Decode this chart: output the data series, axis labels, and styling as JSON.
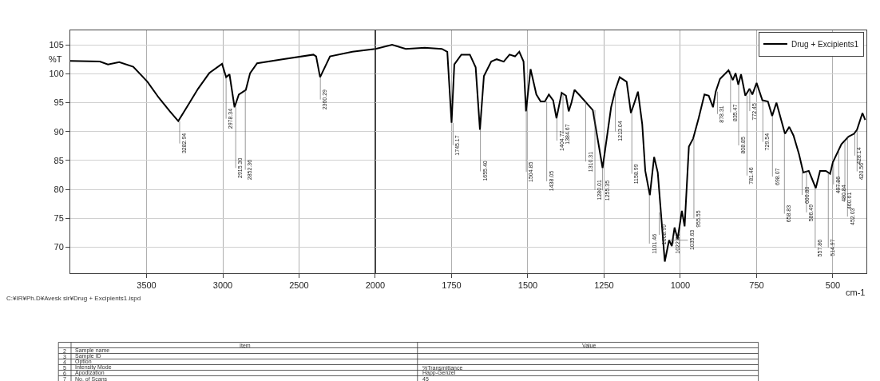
{
  "chart_data": [
    {
      "type": "line",
      "ylabel": "%T",
      "x": [
        4000,
        3806,
        3753,
        3679,
        3587,
        3494,
        3421,
        3347,
        3292,
        3236,
        3162,
        3089,
        3005,
        2978,
        2956,
        2923,
        2895,
        2849,
        2821,
        2775,
        2609,
        2406,
        2388,
        2362,
        2297,
        2150,
        2000
      ],
      "series": [
        {
          "color": "#000000",
          "values": [
            102.2,
            102.1,
            101.6,
            102,
            101.2,
            98.6,
            95.9,
            93.5,
            91.8,
            94.2,
            97.4,
            100.1,
            101.7,
            99.4,
            99.9,
            94.2,
            96.4,
            97.2,
            100.1,
            101.8,
            102.5,
            103.3,
            103,
            99.4,
            103,
            103.8,
            104.3
          ]
        }
      ],
      "xlim": [
        4000,
        2000
      ],
      "xticks": [
        3500,
        3000,
        2500,
        2000
      ],
      "ylim": [
        65.5,
        107.5
      ],
      "yticks": [
        70,
        75,
        80,
        85,
        90,
        95,
        100,
        105
      ],
      "grid": true,
      "annotations": [
        {
          "text": "3282.94",
          "x": 3282.94,
          "y": 91.8
        },
        {
          "text": "2978.34",
          "x": 2978.34,
          "y": 99.4
        },
        {
          "text": "2915.30",
          "x": 2915.3,
          "y": 94.2
        },
        {
          "text": "2852.36",
          "x": 2852.36,
          "y": 97.2
        },
        {
          "text": "2360.29",
          "x": 2360.29,
          "y": 99.4
        },
        "C:¥IR¥Ph.D¥Avesk sir¥Drug + Excipients1.ispd",
        "Item",
        "Value",
        "2",
        "Sample name",
        "3",
        "Sample ID",
        "4",
        "Option",
        "5",
        "Intensity Mode",
        "%Transmittance",
        "6",
        "Apodization",
        "Happ-Genzel",
        "7",
        "No. of Scans",
        "45"
      ]
    },
    {
      "type": "line",
      "xlabel": "cm-1",
      "x": [
        2000,
        1945,
        1900,
        1838,
        1782,
        1764,
        1750,
        1741,
        1718,
        1690,
        1671,
        1657,
        1644,
        1620,
        1602,
        1579,
        1560,
        1542,
        1528,
        1514,
        1506,
        1491,
        1472,
        1458,
        1444,
        1431,
        1417,
        1406,
        1389,
        1375,
        1366,
        1357,
        1347,
        1329,
        1287,
        1255,
        1227,
        1213,
        1199,
        1176,
        1162,
        1148,
        1139,
        1125,
        1115,
        1100,
        1086,
        1074,
        1051,
        1037,
        1028,
        1019,
        1009,
        995,
        986,
        972,
        958,
        940,
        921,
        907,
        893,
        884,
        870,
        842,
        828,
        819,
        810,
        801,
        787,
        773,
        764,
        750,
        731,
        713,
        699,
        685,
        657,
        643,
        629,
        611,
        597,
        579,
        556,
        542,
        523,
        509,
        500,
        472,
        449,
        431,
        421,
        403,
        394
      ],
      "series": [
        {
          "name": "Drug + Excipients1",
          "color": "#000000",
          "values": [
            104.3,
            105,
            104.3,
            104.5,
            104.3,
            103.8,
            91.5,
            101.6,
            103.3,
            103.3,
            101.1,
            90.3,
            99.6,
            102.1,
            102.5,
            102.1,
            103.3,
            103,
            103.8,
            102.1,
            93.5,
            100.8,
            96.4,
            95.2,
            95.2,
            96.4,
            95.4,
            92.3,
            96.7,
            96.2,
            93.5,
            95,
            97.2,
            96.2,
            93.7,
            83.7,
            94.2,
            97.2,
            99.4,
            98.6,
            93.2,
            95.4,
            96.9,
            91.3,
            83.2,
            79,
            85.6,
            82.9,
            67.5,
            71.2,
            70.2,
            73.4,
            71.4,
            76.3,
            73.6,
            87.4,
            88.8,
            92.3,
            96.4,
            96.2,
            94.2,
            96.9,
            99.1,
            100.6,
            98.9,
            100.1,
            98.1,
            99.9,
            96.2,
            97.4,
            96.4,
            98.4,
            95.4,
            95.2,
            92.7,
            95,
            89.6,
            90.8,
            89.3,
            86.1,
            82.9,
            83.2,
            80.2,
            83.2,
            83.2,
            82.7,
            84.7,
            87.8,
            89.1,
            89.6,
            90.3,
            93.2,
            92
          ]
        }
      ],
      "xlim": [
        2000,
        390
      ],
      "xticks": [
        1750,
        1500,
        1250,
        1000,
        750,
        500
      ],
      "ylim": [
        65.5,
        107.5
      ],
      "yticks": [
        70,
        75,
        80,
        85,
        90,
        95,
        100,
        105
      ],
      "grid": true,
      "legend": "top right",
      "tick_labels": "x",
      "annotations": [
        {
          "text": "1745.17",
          "x": 1745.17,
          "y": 91.5
        },
        {
          "text": "1655.40",
          "x": 1655.4,
          "y": 90.3
        },
        {
          "text": "1504.85",
          "x": 1504.85,
          "y": 93.5
        },
        {
          "text": "1438.05",
          "x": 1438.05,
          "y": 95.2
        },
        {
          "text": "1404.77",
          "x": 1404.77,
          "y": 92.3
        },
        {
          "text": "1384.67",
          "x": 1384.67,
          "y": 96.7
        },
        {
          "text": "1310.31",
          "x": 1310.31,
          "y": 95.3
        },
        {
          "text": "1280.01",
          "x": 1280.01,
          "y": 93.7
        },
        {
          "text": "1255.35",
          "x": 1255.35,
          "y": 83.7
        },
        {
          "text": "1213.04",
          "x": 1213.04,
          "y": 97.2
        },
        {
          "text": "1158.99",
          "x": 1158.99,
          "y": 93.2
        },
        {
          "text": "1101.46",
          "x": 1101.46,
          "y": 79
        },
        {
          "text": "1068.99",
          "x": 1068.99,
          "y": 76
        },
        {
          "text": "1035.63",
          "x": 1035.63,
          "y": 71.2
        },
        {
          "text": "1022.86",
          "x": 1022.86,
          "y": 72
        },
        {
          "text": "955.55",
          "x": 955.55,
          "y": 88.8
        },
        {
          "text": "878.31",
          "x": 878.31,
          "y": 96.9
        },
        {
          "text": "835.47",
          "x": 835.47,
          "y": 100.5
        },
        {
          "text": "808.85",
          "x": 808.85,
          "y": 98.1
        },
        {
          "text": "781.46",
          "x": 781.46,
          "y": 96.2
        },
        {
          "text": "772.45",
          "x": 772.45,
          "y": 97.4
        },
        {
          "text": "729.54",
          "x": 729.54,
          "y": 95.4
        },
        {
          "text": "698.07",
          "x": 698.07,
          "y": 92.7
        },
        {
          "text": "658.83",
          "x": 658.83,
          "y": 89.6
        },
        {
          "text": "600.80",
          "x": 600.8,
          "y": 82.9
        },
        {
          "text": "586.49",
          "x": 586.49,
          "y": 83.2
        },
        {
          "text": "557.86",
          "x": 557.86,
          "y": 80.2
        },
        {
          "text": "514.97",
          "x": 514.97,
          "y": 82.7
        },
        {
          "text": "497.86",
          "x": 497.86,
          "y": 84.7
        },
        {
          "text": "480.84",
          "x": 480.84,
          "y": 86.5
        },
        {
          "text": "460.61",
          "x": 460.61,
          "y": 88.5
        },
        {
          "text": "452.03",
          "x": 452.03,
          "y": 89.1
        },
        {
          "text": "428.14",
          "x": 428.14,
          "y": 89.7
        },
        {
          "text": "420.56",
          "x": 420.56,
          "y": 90.3
        }
      ]
    }
  ]
}
